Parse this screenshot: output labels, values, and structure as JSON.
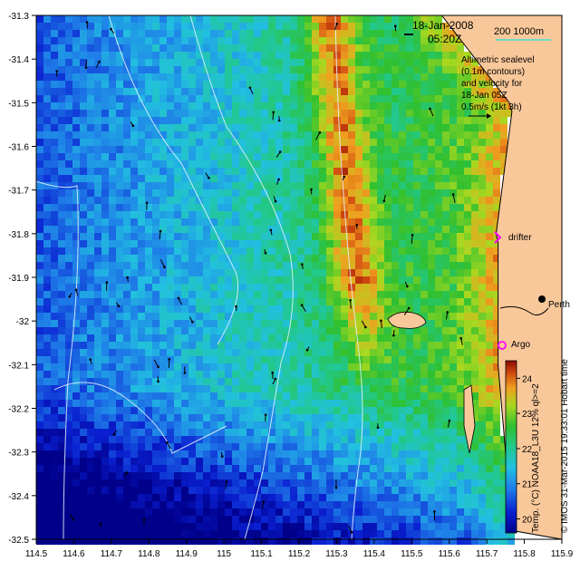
{
  "header": {
    "date": "18-Jan-2008",
    "time": "05:20Z"
  },
  "scale_bar": {
    "label": "200  1000m"
  },
  "info": {
    "lines": [
      "Altimetric sealevel",
      "(0.1m contours)",
      "and velocity for",
      "18-Jan 05Z",
      "0.5m/s (1kt 3h)"
    ]
  },
  "labels": {
    "drifter": "drifter",
    "argo": "Argo",
    "city": "Perth"
  },
  "colorbar": {
    "ticks": [
      "24",
      "23",
      "22",
      "21",
      "20"
    ],
    "caption": "Temp. (°C) NOAA18_L3U 12% ql>=2"
  },
  "credit": "© IMOS 31-Mar-2015 19:33:01 Hobart time",
  "colors": {
    "land": "#f9c89a",
    "drifter_marker": "#ff00ff",
    "argo_marker": "#ff00ff",
    "scale_line": "#40e0d0"
  },
  "chart_data": {
    "type": "heatmap",
    "title": "",
    "xlabel": "",
    "ylabel": "",
    "x_ticks": [
      "114.5",
      "114.6",
      "114.7",
      "114.8",
      "114.9",
      "115",
      "115.1",
      "115.2",
      "115.3",
      "115.4",
      "115.5",
      "115.6",
      "115.7",
      "115.8",
      "115.9"
    ],
    "y_ticks": [
      "-31.3",
      "-31.4",
      "-31.5",
      "-31.6",
      "-31.7",
      "-31.8",
      "-31.9",
      "-32",
      "-32.1",
      "-32.2",
      "-32.3",
      "-32.4",
      "-32.5"
    ],
    "xlim": [
      114.5,
      115.9
    ],
    "ylim": [
      -32.5,
      -31.3
    ],
    "color_range": [
      19.6,
      24.5
    ],
    "markers": [
      {
        "name": "drifter",
        "lon": 115.74,
        "lat": -31.81
      },
      {
        "name": "Argo",
        "lon": 115.74,
        "lat": -32.07
      }
    ]
  }
}
